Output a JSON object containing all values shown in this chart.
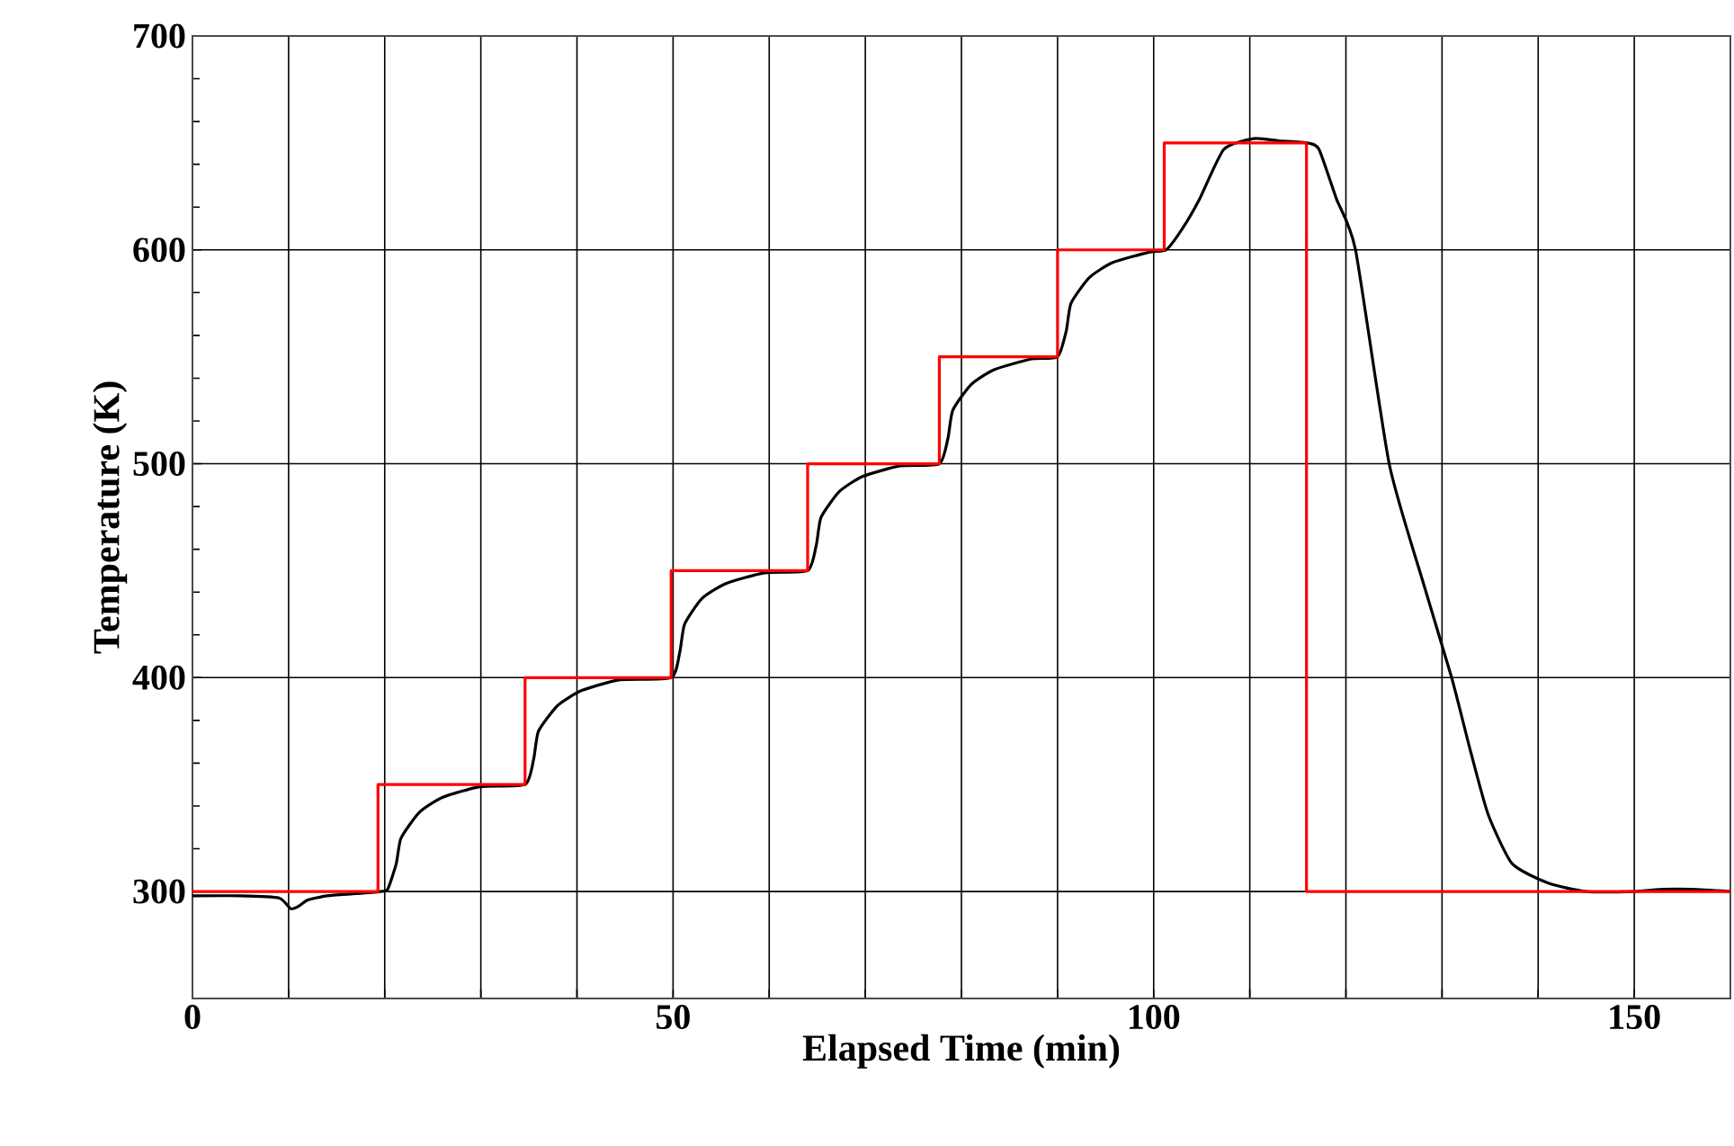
{
  "chart_data": {
    "type": "line",
    "xlabel": "Elapsed Time (min)",
    "ylabel": "Temperature (K)",
    "xlim": [
      0,
      160
    ],
    "ylim": [
      250,
      700
    ],
    "xticks": [
      0,
      {
        "value": 10,
        "label": null
      },
      {
        "value": 20,
        "label": null
      },
      {
        "value": 30,
        "label": null
      },
      {
        "value": 40,
        "label": null
      },
      50,
      {
        "value": 60,
        "label": null
      },
      {
        "value": 70,
        "label": null
      },
      {
        "value": 80,
        "label": null
      },
      {
        "value": 90,
        "label": null
      },
      100,
      {
        "value": 110,
        "label": null
      },
      {
        "value": 120,
        "label": null
      },
      {
        "value": 130,
        "label": null
      },
      {
        "value": 140,
        "label": null
      },
      150
    ],
    "yticks": [
      300,
      400,
      500,
      600,
      700
    ],
    "grid": true,
    "marker": "none",
    "line_style": "solid",
    "series": [
      {
        "color": "#000000",
        "x": [
          0,
          5,
          9,
          10.2,
          11,
          12,
          14,
          17,
          19.5,
          20.3,
          21.2,
          21.7,
          23.6,
          26,
          29.9,
          34.6,
          35.5,
          36,
          38,
          40.5,
          44.5,
          49.8,
          50.7,
          51.2,
          53,
          55.5,
          59.5,
          64,
          64.9,
          65.4,
          67.3,
          69.7,
          73.6,
          77.7,
          78.6,
          79.1,
          81,
          83.4,
          87.3,
          90,
          90.9,
          91.4,
          93.3,
          95.7,
          99.6,
          101.3,
          103,
          104.8,
          107.3,
          110.4,
          113,
          116,
          117.2,
          119,
          121,
          124.5,
          128,
          131,
          133,
          134.8,
          137.3,
          141,
          145,
          150,
          153,
          156,
          160
        ],
        "values": [
          298,
          298,
          297,
          292,
          293,
          296,
          298,
          299,
          300,
          301,
          313,
          325,
          337,
          344,
          349,
          350,
          362,
          375,
          387,
          394,
          399,
          400,
          412,
          425,
          437,
          444,
          449,
          450,
          462,
          475,
          487,
          494,
          499,
          500,
          512,
          525,
          537,
          544,
          549,
          550,
          562,
          575,
          587,
          594,
          599,
          600,
          610,
          624,
          647,
          652,
          651,
          650,
          647,
          624,
          600,
          500,
          445,
          400,
          365,
          336,
          313,
          304,
          300,
          300,
          301,
          301,
          300
        ]
      },
      {
        "type": "step",
        "color": "#ff0000",
        "x": [
          0,
          19.3,
          34.6,
          49.8,
          64,
          77.7,
          90,
          101.1,
          115.9,
          160
        ],
        "values": [
          300,
          350,
          400,
          450,
          500,
          550,
          600,
          650,
          300,
          300
        ]
      }
    ]
  }
}
